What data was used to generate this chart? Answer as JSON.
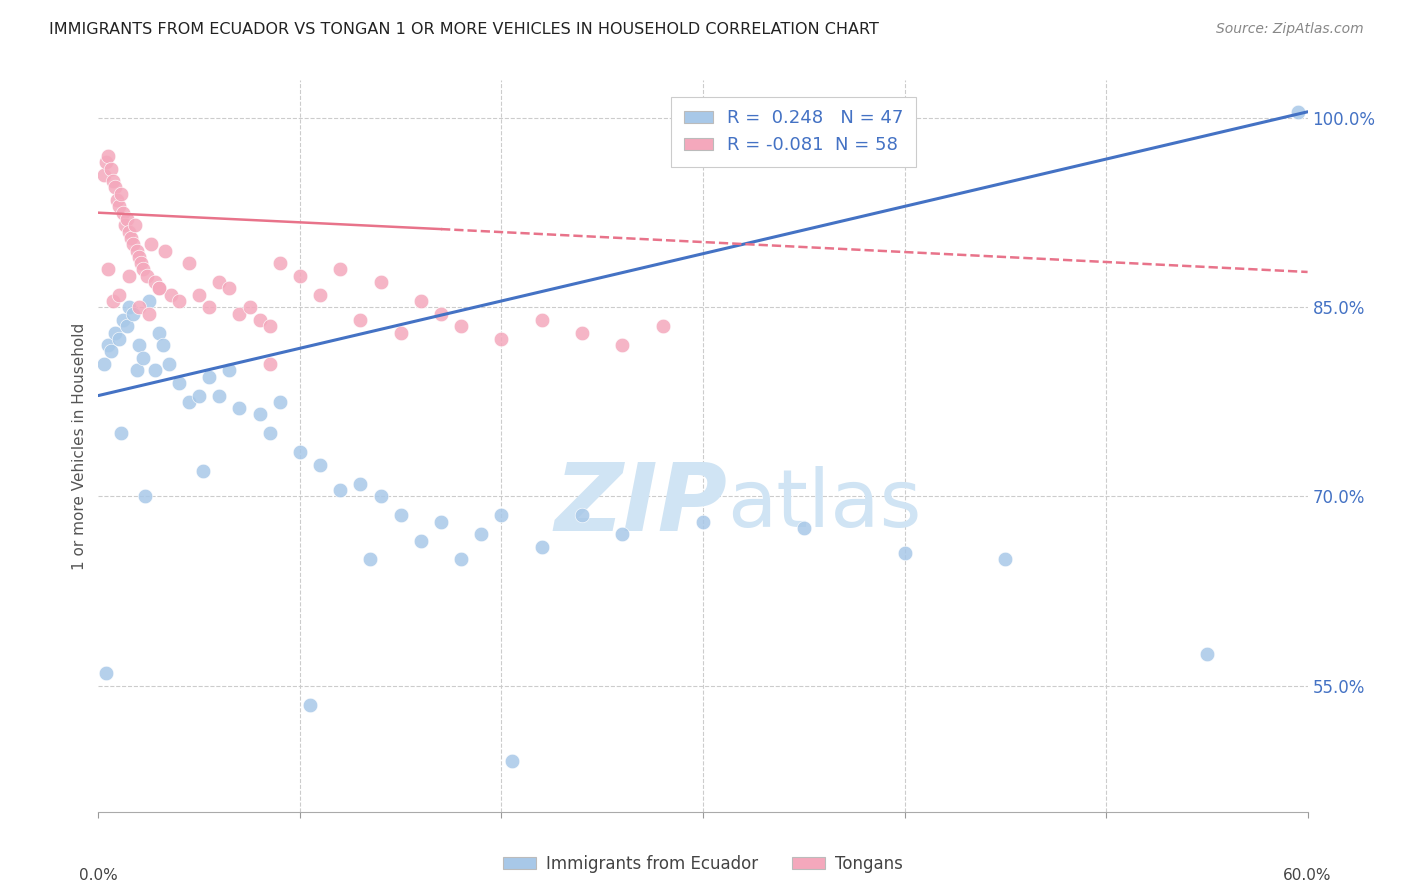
{
  "title": "IMMIGRANTS FROM ECUADOR VS TONGAN 1 OR MORE VEHICLES IN HOUSEHOLD CORRELATION CHART",
  "source": "Source: ZipAtlas.com",
  "ylabel_label": "1 or more Vehicles in Household",
  "legend_label1": "Immigrants from Ecuador",
  "legend_label2": "Tongans",
  "r1": 0.248,
  "n1": 47,
  "r2": -0.081,
  "n2": 58,
  "blue_color": "#A8C8E8",
  "pink_color": "#F4A8BC",
  "blue_line_color": "#4472C4",
  "pink_line_color": "#E8738A",
  "watermark_color": "#D0E4F4",
  "xmin": 0.0,
  "xmax": 60.0,
  "ymin": 45.0,
  "ymax": 103.0,
  "ytick_vals": [
    55.0,
    70.0,
    85.0,
    100.0
  ],
  "ytick_labels": [
    "55.0%",
    "70.0%",
    "85.0%",
    "100.0%"
  ],
  "blue_line_x0": 0.0,
  "blue_line_y0": 78.0,
  "blue_line_x1": 60.0,
  "blue_line_y1": 100.5,
  "pink_solid_x0": 0.0,
  "pink_solid_y0": 92.5,
  "pink_solid_x1": 17.0,
  "pink_solid_y1": 91.2,
  "pink_dash_x0": 17.0,
  "pink_dash_y0": 91.2,
  "pink_dash_x1": 60.0,
  "pink_dash_y1": 87.8,
  "blue_scatter_x": [
    0.3,
    0.5,
    0.6,
    0.8,
    1.0,
    1.2,
    1.4,
    1.5,
    1.7,
    1.9,
    2.0,
    2.2,
    2.5,
    2.8,
    3.0,
    3.2,
    3.5,
    4.0,
    4.5,
    5.0,
    5.5,
    6.0,
    6.5,
    7.0,
    8.0,
    8.5,
    9.0,
    10.0,
    11.0,
    12.0,
    13.0,
    14.0,
    15.0,
    16.0,
    17.0,
    18.0,
    19.0,
    20.0,
    22.0,
    24.0,
    26.0,
    30.0,
    35.0,
    40.0,
    45.0,
    55.0,
    59.5
  ],
  "blue_scatter_y": [
    80.5,
    82.0,
    81.5,
    83.0,
    82.5,
    84.0,
    83.5,
    85.0,
    84.5,
    80.0,
    82.0,
    81.0,
    85.5,
    80.0,
    83.0,
    82.0,
    80.5,
    79.0,
    77.5,
    78.0,
    79.5,
    78.0,
    80.0,
    77.0,
    76.5,
    75.0,
    77.5,
    73.5,
    72.5,
    70.5,
    71.0,
    70.0,
    68.5,
    66.5,
    68.0,
    65.0,
    67.0,
    68.5,
    66.0,
    68.5,
    67.0,
    68.0,
    67.5,
    65.5,
    65.0,
    57.5,
    100.5
  ],
  "blue_outlier_x": [
    0.4,
    1.1,
    2.3,
    5.2,
    10.5,
    13.5,
    20.5
  ],
  "blue_outlier_y": [
    56.0,
    75.0,
    70.0,
    72.0,
    53.5,
    65.0,
    49.0
  ],
  "pink_scatter_x": [
    0.3,
    0.4,
    0.5,
    0.6,
    0.7,
    0.8,
    0.9,
    1.0,
    1.1,
    1.2,
    1.3,
    1.4,
    1.5,
    1.6,
    1.7,
    1.8,
    1.9,
    2.0,
    2.1,
    2.2,
    2.4,
    2.6,
    2.8,
    3.0,
    3.3,
    3.6,
    4.0,
    4.5,
    5.0,
    5.5,
    6.0,
    6.5,
    7.0,
    7.5,
    8.0,
    8.5,
    9.0,
    10.0,
    11.0,
    12.0,
    13.0,
    14.0,
    15.0,
    16.0,
    17.0,
    18.0,
    20.0,
    22.0,
    24.0,
    26.0,
    28.0
  ],
  "pink_scatter_y": [
    95.5,
    96.5,
    97.0,
    96.0,
    95.0,
    94.5,
    93.5,
    93.0,
    94.0,
    92.5,
    91.5,
    92.0,
    91.0,
    90.5,
    90.0,
    91.5,
    89.5,
    89.0,
    88.5,
    88.0,
    87.5,
    90.0,
    87.0,
    86.5,
    89.5,
    86.0,
    85.5,
    88.5,
    86.0,
    85.0,
    87.0,
    86.5,
    84.5,
    85.0,
    84.0,
    83.5,
    88.5,
    87.5,
    86.0,
    88.0,
    84.0,
    87.0,
    83.0,
    85.5,
    84.5,
    83.5,
    82.5,
    84.0,
    83.0,
    82.0,
    83.5
  ],
  "pink_extra_x": [
    0.5,
    0.7,
    1.0,
    1.5,
    2.0,
    2.5,
    3.0,
    8.5
  ],
  "pink_extra_y": [
    88.0,
    85.5,
    86.0,
    87.5,
    85.0,
    84.5,
    86.5,
    80.5
  ]
}
